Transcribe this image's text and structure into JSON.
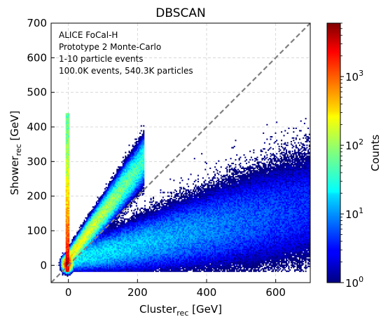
{
  "chart_data": {
    "type": "heatmap",
    "title": "DBSCAN",
    "xlabel": {
      "main": "Cluster",
      "sub": "rec",
      "unit": " [GeV]"
    },
    "ylabel": {
      "main": "Shower",
      "sub": "rec",
      "unit": " [GeV]"
    },
    "xlim": [
      -50,
      700
    ],
    "ylim": [
      -50,
      700
    ],
    "x_ticks": [
      0,
      200,
      400,
      600
    ],
    "x_tick_labels": [
      "0",
      "200",
      "400",
      "600"
    ],
    "y_ticks": [
      0,
      100,
      200,
      300,
      400,
      500,
      600,
      700
    ],
    "y_tick_labels": [
      "0",
      "100",
      "200",
      "300",
      "400",
      "500",
      "600",
      "700"
    ],
    "grid": true,
    "reference_line": {
      "from": [
        -50,
        -50
      ],
      "to": [
        700,
        700
      ],
      "style": "dashed",
      "color": "#808080"
    },
    "annotation": [
      "ALICE FoCal-H",
      "Prototype 2 Monte-Carlo",
      "1-10 particle events",
      "100.0K events, 540.3K particles"
    ],
    "colorbar": {
      "label": "Counts",
      "scale": "log",
      "range": [
        1,
        6000
      ],
      "colormap": "jet",
      "ticks": [
        {
          "base": "10",
          "exp": "0",
          "value": 1
        },
        {
          "base": "10",
          "exp": "1",
          "value": 10
        },
        {
          "base": "10",
          "exp": "2",
          "value": 100
        },
        {
          "base": "10",
          "exp": "3",
          "value": 1000
        }
      ]
    },
    "features": [
      {
        "name": "vertical band near zero cluster energy",
        "x": [
          -8,
          2
        ],
        "y": [
          -20,
          440
        ],
        "peak_counts": 2000
      },
      {
        "name": "upper diagonal band",
        "x": [
          0,
          220
        ],
        "y_at_x0": 20,
        "slope": 1.3,
        "peak_counts": 300
      },
      {
        "name": "broad lower fan",
        "x": [
          0,
          700
        ],
        "y": [
          -20,
          450
        ],
        "peak_counts": 30
      }
    ]
  }
}
